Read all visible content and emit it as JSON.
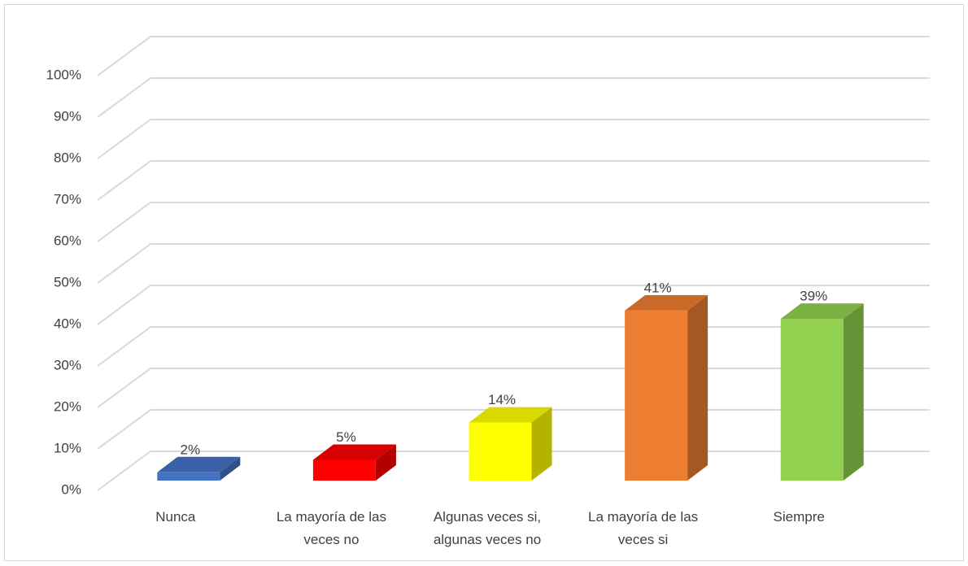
{
  "chart_data": {
    "type": "bar3d",
    "categories": [
      "Nunca",
      "La mayoría de las veces no",
      "Algunas veces si, algunas veces no",
      "La mayoría de las veces si",
      "Siempre"
    ],
    "values": [
      2,
      5,
      14,
      41,
      39
    ],
    "value_labels": [
      "2%",
      "5%",
      "14%",
      "41%",
      "39%"
    ],
    "colors": [
      "#4472c4",
      "#ff0000",
      "#ffff00",
      "#ed7d31",
      "#92d050"
    ],
    "ylim": [
      0,
      100
    ],
    "yticks": [
      {
        "value": 0,
        "label": "0%"
      },
      {
        "value": 10,
        "label": "10%"
      },
      {
        "value": 20,
        "label": "20%"
      },
      {
        "value": 30,
        "label": "30%"
      },
      {
        "value": 40,
        "label": "40%"
      },
      {
        "value": 50,
        "label": "50%"
      },
      {
        "value": 60,
        "label": "60%"
      },
      {
        "value": 70,
        "label": "70%"
      },
      {
        "value": 80,
        "label": "80%"
      },
      {
        "value": 90,
        "label": "90%"
      },
      {
        "value": 100,
        "label": "100%"
      }
    ],
    "grid": true
  }
}
